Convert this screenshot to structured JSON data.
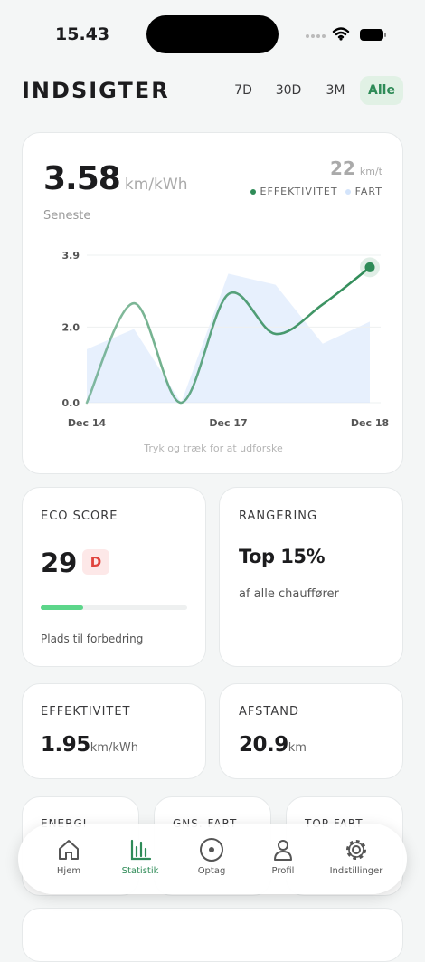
{
  "status_bar": {
    "time": "15.43"
  },
  "header": {
    "title": "INDSIGTER",
    "ranges": [
      "7D",
      "30D",
      "3M",
      "Alle"
    ],
    "active_range": 3
  },
  "hero": {
    "value": "3.58",
    "unit": "km/kWh",
    "caption": "Seneste",
    "speed": "22",
    "speed_unit": "km/t",
    "hint": "Tryk og træk for at udforske"
  },
  "chart_data": {
    "type": "line",
    "categories": [
      "Dec 14",
      null,
      null,
      "Dec 17",
      null,
      null,
      "Dec 18"
    ],
    "series": [
      {
        "name": "EFFEKTIVITET",
        "color": "#2e8b57",
        "values": [
          0,
          2.63,
          0,
          2.87,
          1.82,
          2.6,
          3.58
        ]
      },
      {
        "name": "FART",
        "color": "#d3e4fb",
        "axis": "y2",
        "values": [
          14.5,
          20,
          0,
          35,
          32,
          16,
          22
        ]
      }
    ],
    "ylim": [
      0,
      3.9
    ],
    "yticks": [
      {
        "value": 0,
        "label": "0.0"
      },
      {
        "value": 2,
        "label": "2.0"
      },
      {
        "value": 3.9,
        "label": "3.9"
      }
    ],
    "y2lim": [
      0,
      40
    ],
    "grid": true
  },
  "eco": {
    "label": "ECO SCORE",
    "value": 29,
    "grade": "D",
    "note": "Plads til forbedring"
  },
  "ranking": {
    "label": "RANGERING",
    "value": "Top 15%",
    "note": "af alle chauffører"
  },
  "metrics": [
    {
      "label": "EFFEKTIVITET",
      "value": "1.95",
      "unit": "km/kWh"
    },
    {
      "label": "AFSTAND",
      "value": "20.9",
      "unit": "km"
    }
  ],
  "more": [
    {
      "label": "ENERGI"
    },
    {
      "label": "GNS. FART"
    },
    {
      "label": "TOP FART"
    }
  ],
  "nav": {
    "items": [
      "Hjem",
      "Statistik",
      "Optag",
      "Profil",
      "Indstillinger"
    ],
    "active": 1
  }
}
